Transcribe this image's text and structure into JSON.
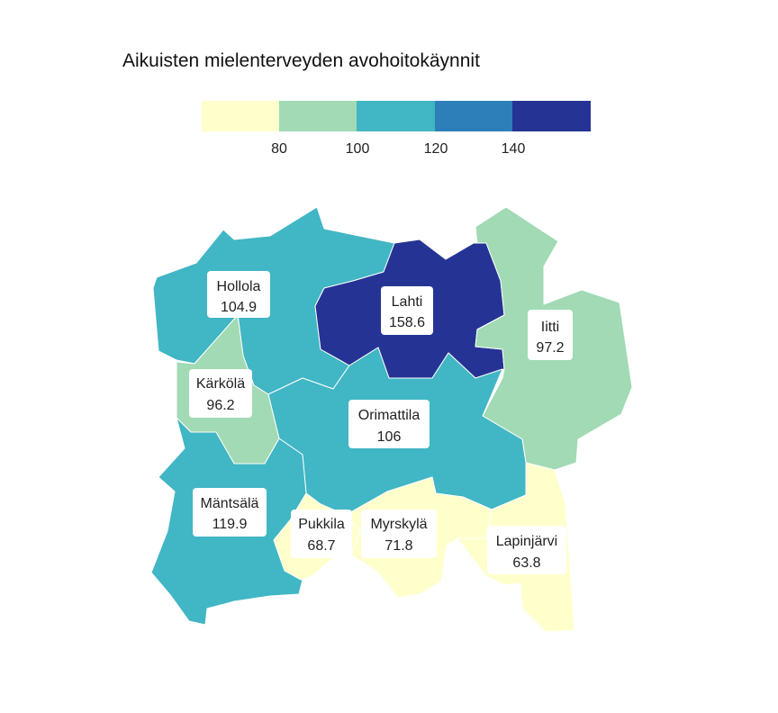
{
  "title": "Aikuisten mielenterveyden avohoitokäynnit",
  "legend": {
    "colors": [
      "#ffffcc",
      "#a1dab4",
      "#41b6c4",
      "#2c7fb8",
      "#253494"
    ],
    "ticks": [
      "80",
      "100",
      "120",
      "140"
    ]
  },
  "municipalities": [
    {
      "id": "hollola",
      "name": "Hollola",
      "value": "104.9",
      "color": "#41b6c4"
    },
    {
      "id": "lahti",
      "name": "Lahti",
      "value": "158.6",
      "color": "#253494"
    },
    {
      "id": "iitti",
      "name": "Iitti",
      "value": "97.2",
      "color": "#a1dab4"
    },
    {
      "id": "karkola",
      "name": "Kärkölä",
      "value": "96.2",
      "color": "#a1dab4"
    },
    {
      "id": "orimattila",
      "name": "Orimattila",
      "value": "106",
      "color": "#41b6c4"
    },
    {
      "id": "mantsala",
      "name": "Mäntsälä",
      "value": "119.9",
      "color": "#41b6c4"
    },
    {
      "id": "pukkila",
      "name": "Pukkila",
      "value": "68.7",
      "color": "#ffffcc"
    },
    {
      "id": "myrskyla",
      "name": "Myrskylä",
      "value": "71.8",
      "color": "#ffffcc"
    },
    {
      "id": "lapinjarvi",
      "name": "Lapinjärvi",
      "value": "63.8",
      "color": "#ffffcc"
    }
  ]
}
